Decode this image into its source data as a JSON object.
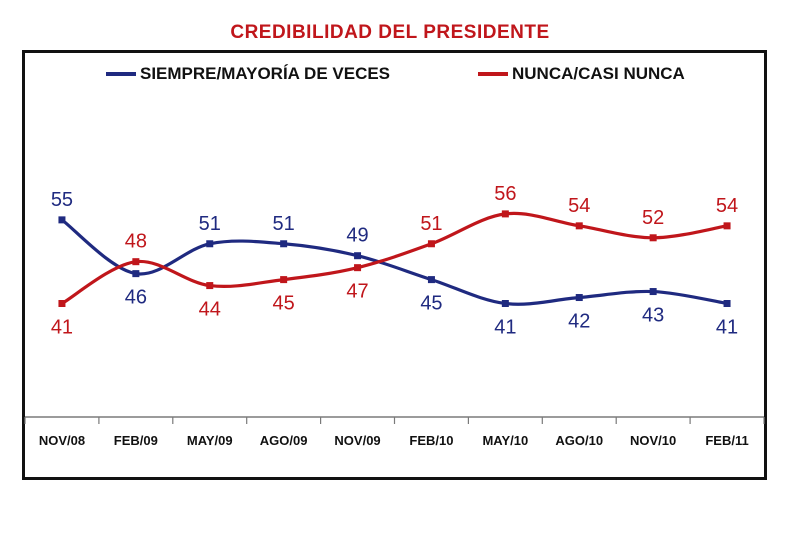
{
  "chart_data": {
    "type": "line",
    "title": "CREDIBILIDAD DEL PRESIDENTE",
    "title_color": "#c0161b",
    "categories": [
      "NOV/08",
      "FEB/09",
      "MAY/09",
      "AGO/09",
      "NOV/09",
      "FEB/10",
      "MAY/10",
      "AGO/10",
      "NOV/10",
      "FEB/11"
    ],
    "series": [
      {
        "name": "SIEMPRE/MAYORÍA DE VECES",
        "color": "#1f2a80",
        "values": [
          55,
          46,
          51,
          51,
          49,
          45,
          41,
          42,
          43,
          41
        ]
      },
      {
        "name": "NUNCA/CASI NUNCA",
        "color": "#c0161b",
        "values": [
          41,
          48,
          44,
          45,
          47,
          51,
          56,
          54,
          52,
          54
        ]
      }
    ],
    "ylim": [
      22,
      60
    ],
    "grid": false,
    "legend_position": "top",
    "data_labels": true
  }
}
